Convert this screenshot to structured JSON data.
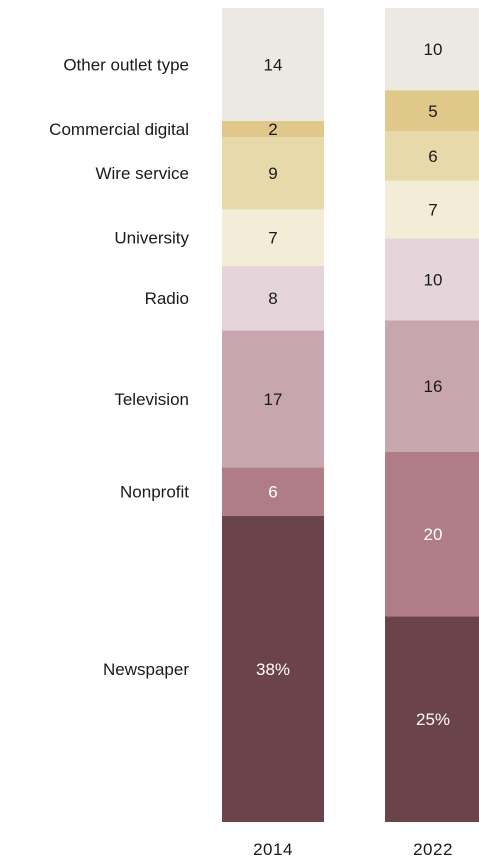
{
  "chart_data": {
    "type": "bar",
    "stacked": true,
    "stack_order": "bottom-to-top",
    "categories": [
      "2014",
      "2022"
    ],
    "series": [
      {
        "name": "Newspaper",
        "values": [
          38,
          25
        ],
        "labels": [
          "38%",
          "25%"
        ],
        "color": "#6b434a",
        "text_color": "#ffffff"
      },
      {
        "name": "Nonprofit",
        "values": [
          6,
          20
        ],
        "labels": [
          "6",
          "20"
        ],
        "color": "#b07d86",
        "text_color": "#ffffff"
      },
      {
        "name": "Television",
        "values": [
          17,
          16
        ],
        "labels": [
          "17",
          "16"
        ],
        "color": "#c8a6ad",
        "text_color": "#1a1a1a"
      },
      {
        "name": "Radio",
        "values": [
          8,
          10
        ],
        "labels": [
          "8",
          "10"
        ],
        "color": "#e5d5da",
        "text_color": "#1a1a1a"
      },
      {
        "name": "University",
        "values": [
          7,
          7
        ],
        "labels": [
          "7",
          "7"
        ],
        "color": "#f3ecd7",
        "text_color": "#1a1a1a"
      },
      {
        "name": "Wire service",
        "values": [
          9,
          6
        ],
        "labels": [
          "9",
          "6"
        ],
        "color": "#e8d9aa",
        "text_color": "#1a1a1a"
      },
      {
        "name": "Commercial digital",
        "values": [
          2,
          5
        ],
        "labels": [
          "2",
          "5"
        ],
        "color": "#dfc88a",
        "text_color": "#1a1a1a"
      },
      {
        "name": "Other outlet type",
        "values": [
          14,
          10
        ],
        "labels": [
          "14",
          "10"
        ],
        "color": "#ece9e3",
        "text_color": "#1a1a1a"
      }
    ],
    "title": "",
    "xlabel": "",
    "ylabel": "",
    "ylim": [
      0,
      100
    ],
    "grid": false,
    "legend": "category labels at left of the 2014 column"
  }
}
